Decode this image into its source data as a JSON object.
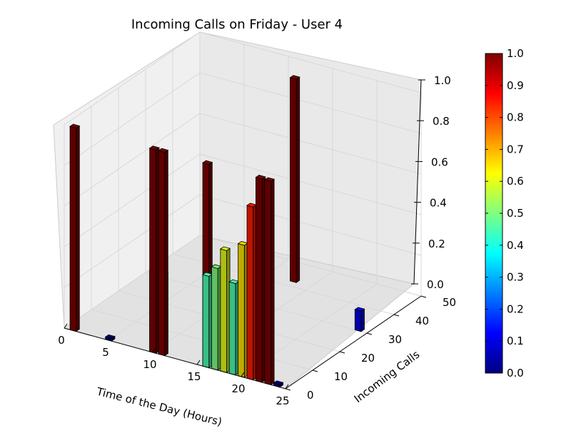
{
  "chart_data": {
    "type": "bar3d",
    "title": "Incoming Calls on Friday - User 4",
    "xlabel": "Time of the Day (Hours)",
    "ylabel": "Incoming Calls",
    "zlabel": "",
    "x_ticks": [
      "0",
      "5",
      "10",
      "15",
      "20",
      "25"
    ],
    "y_ticks": [
      "0",
      "10",
      "20",
      "30",
      "40",
      "50"
    ],
    "z_ticks": [
      "0.0",
      "0.2",
      "0.4",
      "0.6",
      "0.8",
      "1.0"
    ],
    "xlim": [
      0,
      25
    ],
    "ylim": [
      0,
      50
    ],
    "zlim": [
      0,
      1
    ],
    "colorbar": {
      "ticks": [
        "0.0",
        "0.1",
        "0.2",
        "0.3",
        "0.4",
        "0.5",
        "0.6",
        "0.7",
        "0.8",
        "0.9",
        "1.0"
      ],
      "range": [
        0,
        1
      ],
      "colormap": "jet"
    },
    "bars": [
      {
        "hour": 1,
        "calls": 0,
        "value": 1.0
      },
      {
        "hour": 5,
        "calls": 0,
        "value": 0.0
      },
      {
        "hour": 10,
        "calls": 0,
        "value": 0.4
      },
      {
        "hour": 10,
        "calls": 0,
        "value": 1.0
      },
      {
        "hour": 11,
        "calls": 0,
        "value": 0.4
      },
      {
        "hour": 11,
        "calls": 0,
        "value": 1.0
      },
      {
        "hour": 16,
        "calls": 0,
        "value": 1.0
      },
      {
        "hour": 16,
        "calls": 0,
        "value": 0.45
      },
      {
        "hour": 17,
        "calls": 0,
        "value": 0.5
      },
      {
        "hour": 18,
        "calls": 0,
        "value": 0.6
      },
      {
        "hour": 19,
        "calls": 0,
        "value": 0.45
      },
      {
        "hour": 20,
        "calls": 0,
        "value": 0.65
      },
      {
        "hour": 21,
        "calls": 0,
        "value": 0.85
      },
      {
        "hour": 22,
        "calls": 0,
        "value": 1.0
      },
      {
        "hour": 23,
        "calls": 0,
        "value": 1.0
      },
      {
        "hour": 24,
        "calls": 0,
        "value": 0.0
      },
      {
        "hour": 13,
        "calls": 42,
        "value": 1.0
      },
      {
        "hour": 24,
        "calls": 30,
        "value": 0.1
      }
    ]
  }
}
